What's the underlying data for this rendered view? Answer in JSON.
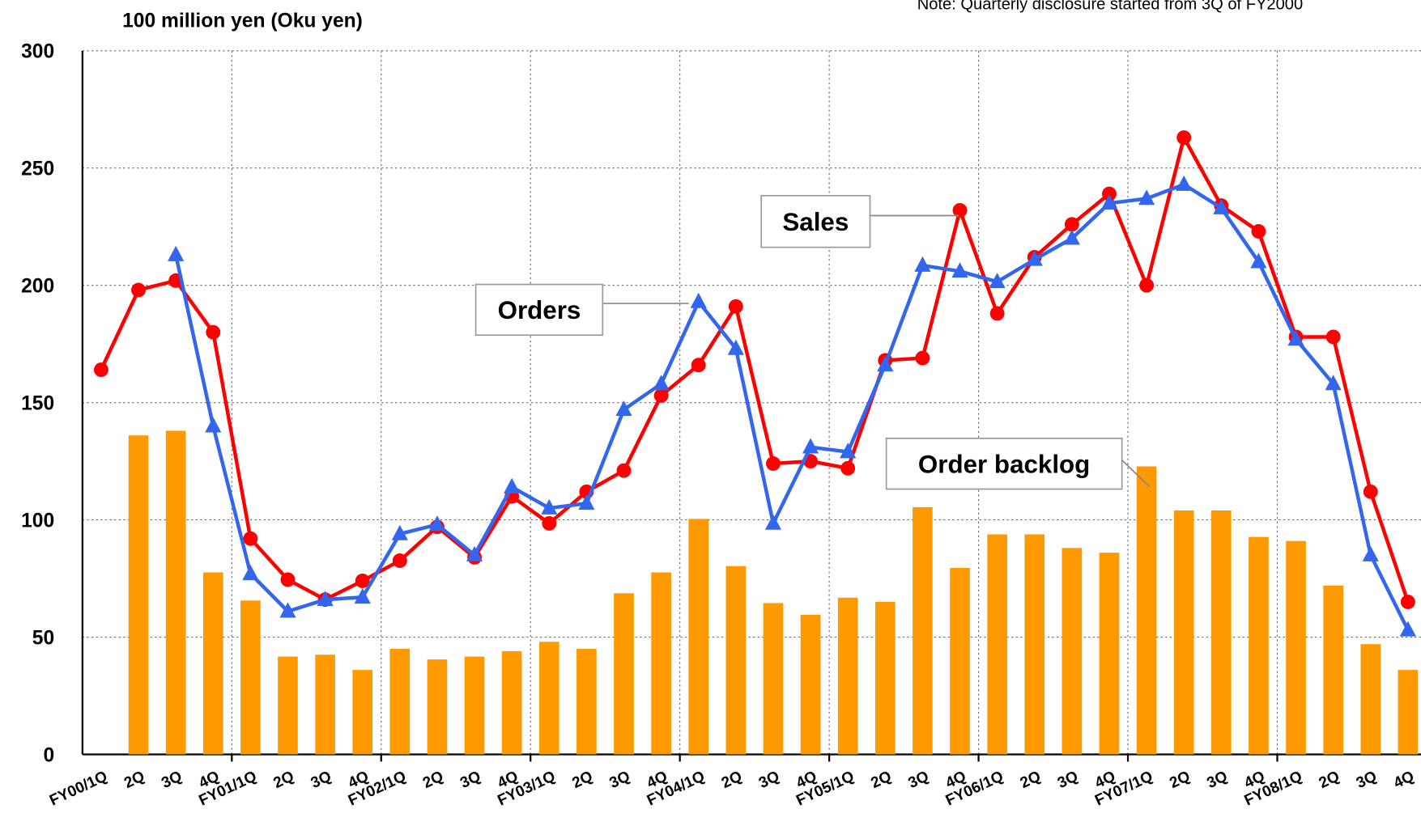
{
  "chart_data": {
    "type": "combo",
    "y_label": "100 million yen (Oku yen)",
    "note": "Note: Quarterly disclosure started from 3Q of FY2000",
    "categories": [
      "FY00/1Q",
      "2Q",
      "3Q",
      "4Q",
      "FY01/1Q",
      "2Q",
      "3Q",
      "4Q",
      "FY02/1Q",
      "2Q",
      "3Q",
      "4Q",
      "FY03/1Q",
      "2Q",
      "3Q",
      "4Q",
      "FY04/1Q",
      "2Q",
      "3Q",
      "4Q",
      "FY05/1Q",
      "2Q",
      "3Q",
      "4Q",
      "FY06/1Q",
      "2Q",
      "3Q",
      "4Q",
      "FY07/1Q",
      "2Q",
      "3Q",
      "4Q",
      "FY08/1Q",
      "2Q",
      "3Q",
      "4Q"
    ],
    "series": [
      {
        "name": "Order backlog",
        "type": "bar",
        "color": "#ff9900",
        "values": [
          null,
          136,
          138,
          77.6,
          65.6,
          41.7,
          42.5,
          36,
          45,
          40.5,
          41.7,
          44,
          48,
          45,
          68.7,
          77.6,
          100.4,
          80.3,
          64.5,
          59.5,
          66.8,
          65,
          105.4,
          79.5,
          93.8,
          93.8,
          88,
          86,
          122.8,
          104,
          104,
          92.7,
          91,
          72,
          47,
          36
        ]
      },
      {
        "name": "Sales",
        "type": "line",
        "marker": "circle",
        "color": "#ff0000",
        "values": [
          164,
          198,
          202,
          180,
          92,
          74.5,
          66,
          74,
          82.6,
          97,
          84,
          110,
          98.5,
          112,
          121,
          153,
          166,
          191,
          124,
          125,
          122,
          168,
          169,
          232,
          188,
          212,
          226,
          239,
          200,
          263,
          234,
          223,
          178,
          178,
          112,
          65
        ]
      },
      {
        "name": "Orders",
        "type": "line",
        "marker": "triangle",
        "color": "#3366ee",
        "values": [
          null,
          null,
          213,
          140,
          77,
          61,
          66,
          67,
          94,
          98,
          85,
          114,
          105,
          107,
          147,
          158,
          193,
          173,
          98.5,
          131,
          129,
          166,
          208.5,
          206,
          201.5,
          211,
          220,
          235,
          237,
          243,
          233,
          210,
          177,
          158,
          85,
          53
        ]
      }
    ],
    "ylim": [
      0,
      300
    ],
    "yticks": [
      0,
      50,
      100,
      150,
      200,
      250,
      300
    ],
    "grid": true
  }
}
